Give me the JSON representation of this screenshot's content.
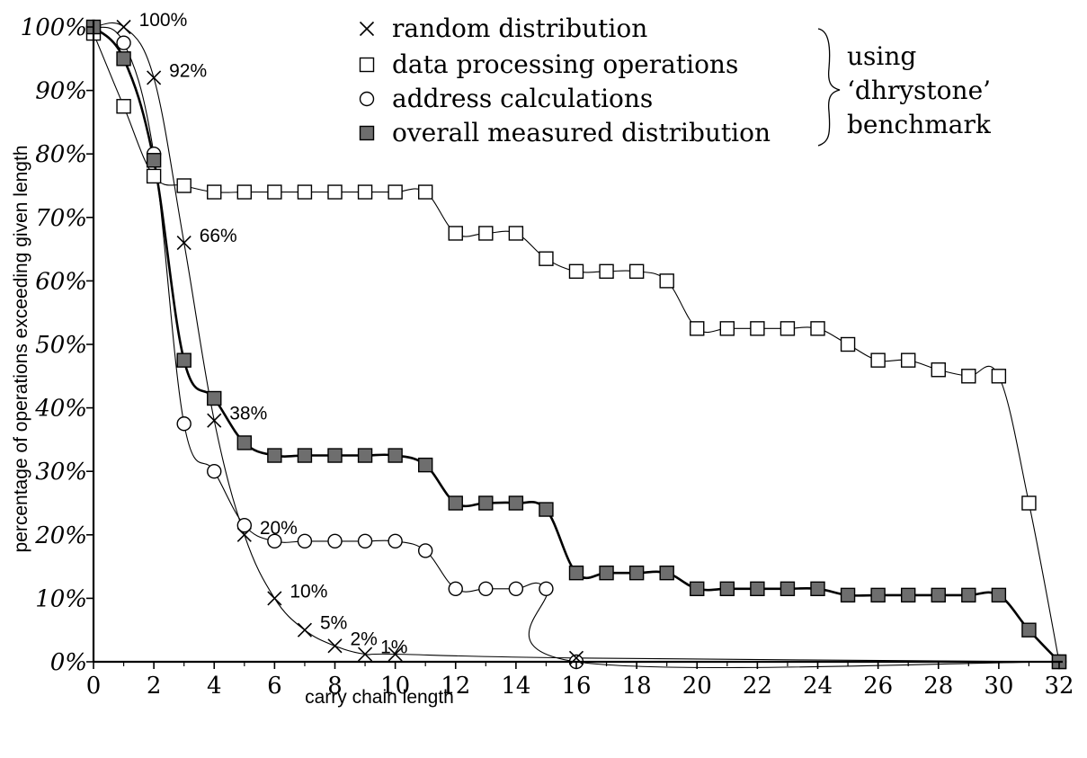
{
  "chart_data": {
    "type": "line",
    "xlabel": "carry chain length",
    "ylabel": "percentage of operations exceeding given length",
    "xlim": [
      0,
      32
    ],
    "ylim": [
      0,
      100
    ],
    "x_ticks": [
      "0",
      "2",
      "4",
      "6",
      "8",
      "10",
      "12",
      "14",
      "16",
      "18",
      "20",
      "22",
      "24",
      "26",
      "28",
      "30",
      "32"
    ],
    "y_ticks": [
      "0%",
      "10%",
      "20%",
      "30%",
      "40%",
      "50%",
      "60%",
      "70%",
      "80%",
      "90%",
      "100%"
    ],
    "grid": false,
    "series": [
      {
        "name": "random distribution",
        "marker": "cross",
        "line": "thin",
        "x": [
          0,
          1,
          2,
          3,
          4,
          5,
          6,
          7,
          8,
          9,
          10,
          16,
          32
        ],
        "y": [
          100,
          100,
          92,
          66,
          38,
          20,
          10,
          5,
          2.5,
          1.2,
          1.2,
          0.6,
          0
        ]
      },
      {
        "name": "data processing operations",
        "marker": "square-open",
        "line": "thin",
        "x": [
          0,
          1,
          2,
          3,
          4,
          5,
          6,
          7,
          8,
          9,
          10,
          11,
          12,
          13,
          14,
          15,
          16,
          17,
          18,
          19,
          20,
          21,
          22,
          23,
          24,
          25,
          26,
          27,
          28,
          29,
          30,
          31,
          32
        ],
        "y": [
          99,
          87.5,
          76.5,
          75,
          74,
          74,
          74,
          74,
          74,
          74,
          74,
          74,
          67.5,
          67.5,
          67.5,
          63.5,
          61.5,
          61.5,
          61.5,
          60,
          52.5,
          52.5,
          52.5,
          52.5,
          52.5,
          50,
          47.5,
          47.5,
          46,
          45,
          45,
          25,
          0
        ]
      },
      {
        "name": "address calculations",
        "marker": "circle-open",
        "line": "thin",
        "x": [
          0,
          1,
          2,
          3,
          4,
          5,
          6,
          7,
          8,
          9,
          10,
          11,
          12,
          13,
          14,
          15,
          16,
          32
        ],
        "y": [
          100,
          97.5,
          80,
          37.5,
          30,
          21.5,
          19,
          19,
          19,
          19,
          19,
          17.5,
          11.5,
          11.5,
          11.5,
          11.5,
          0,
          0
        ]
      },
      {
        "name": "overall measured distribution",
        "marker": "square-filled",
        "line": "thick",
        "x": [
          0,
          1,
          2,
          3,
          4,
          5,
          6,
          7,
          8,
          9,
          10,
          11,
          12,
          13,
          14,
          15,
          16,
          17,
          18,
          19,
          20,
          21,
          22,
          23,
          24,
          25,
          26,
          27,
          28,
          29,
          30,
          31,
          32
        ],
        "y": [
          100,
          95,
          79,
          47.5,
          41.5,
          34.5,
          32.5,
          32.5,
          32.5,
          32.5,
          32.5,
          31,
          25,
          25,
          25,
          24,
          14,
          14,
          14,
          14,
          11.5,
          11.5,
          11.5,
          11.5,
          11.5,
          10.5,
          10.5,
          10.5,
          10.5,
          10.5,
          10.5,
          5,
          0
        ]
      }
    ],
    "annotations": [
      {
        "text": "100%",
        "x": 1,
        "y": 100
      },
      {
        "text": "92%",
        "x": 2,
        "y": 92
      },
      {
        "text": "66%",
        "x": 3,
        "y": 66
      },
      {
        "text": "38%",
        "x": 4,
        "y": 38
      },
      {
        "text": "20%",
        "x": 5,
        "y": 20
      },
      {
        "text": "10%",
        "x": 6,
        "y": 10
      },
      {
        "text": "5%",
        "x": 7,
        "y": 5
      },
      {
        "text": "2%",
        "x": 8,
        "y": 2.5
      },
      {
        "text": "1%",
        "x": 9,
        "y": 1.2
      }
    ],
    "legend": {
      "placement": "top-center",
      "brace_label": [
        "using",
        "‘dhrystone’",
        "benchmark"
      ]
    }
  }
}
